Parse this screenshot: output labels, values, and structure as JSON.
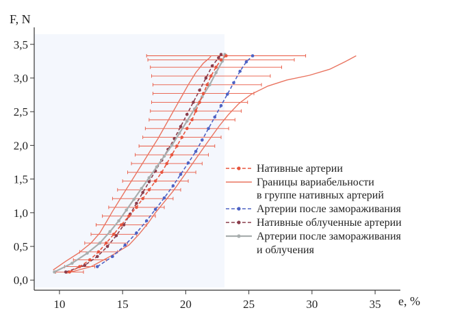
{
  "chart_data": {
    "type": "line",
    "title": "",
    "xlabel": "e, %",
    "ylabel": "F, N",
    "xlim": [
      8,
      37
    ],
    "ylim": [
      -0.15,
      3.65
    ],
    "x_ticks": [
      10,
      15,
      20,
      25,
      30,
      35
    ],
    "y_ticks": [
      0.0,
      0.5,
      1.0,
      1.5,
      2.0,
      2.5,
      3.0,
      3.5
    ],
    "x_tick_labels": [
      "10",
      "15",
      "20",
      "25",
      "30",
      "35"
    ],
    "y_tick_labels": [
      "0,0",
      "0,5",
      "1,0",
      "1,5",
      "2,0",
      "2,5",
      "3,0",
      "3,5"
    ],
    "grid": false,
    "legend_position": "right",
    "series": [
      {
        "name": "Нативные артерии",
        "color": "#e8553e",
        "style": "dashed-with-markers",
        "x": [
          10.8,
          11.6,
          12.4,
          13.1,
          13.7,
          14.3,
          14.9,
          15.5,
          16.1,
          16.6,
          17.1,
          17.6,
          18.1,
          18.5,
          18.9,
          19.3,
          19.7,
          20.1,
          20.5,
          20.8,
          21.1,
          21.4,
          21.7,
          22.0,
          22.4,
          22.8,
          23.2
        ],
        "y": [
          0.12,
          0.2,
          0.3,
          0.42,
          0.55,
          0.68,
          0.82,
          0.95,
          1.08,
          1.21,
          1.34,
          1.47,
          1.6,
          1.73,
          1.86,
          1.99,
          2.12,
          2.25,
          2.38,
          2.51,
          2.64,
          2.77,
          2.9,
          3.03,
          3.16,
          3.27,
          3.33
        ],
        "xerr": [
          1.1,
          1.2,
          1.3,
          1.5,
          1.7,
          1.8,
          2.0,
          2.1,
          2.2,
          2.4,
          2.5,
          2.6,
          2.7,
          2.8,
          2.9,
          3.0,
          3.1,
          3.3,
          3.4,
          3.6,
          3.8,
          4.0,
          4.3,
          4.7,
          5.2,
          5.8,
          6.3
        ]
      },
      {
        "name": "Границы вариабельности в группе нативных артерий",
        "color": "#e9735f",
        "style": "solid",
        "x": [
          9.5,
          10.5,
          11.5,
          12.5,
          13.2,
          13.7,
          14.2,
          14.8,
          15.4,
          16.0,
          16.6,
          17.2,
          17.8,
          18.4,
          19.0,
          19.6,
          20.2,
          20.8,
          21.4,
          21.9,
          22.0
        ],
        "y": [
          0.15,
          0.28,
          0.4,
          0.55,
          0.7,
          0.86,
          1.02,
          1.2,
          1.38,
          1.56,
          1.74,
          1.92,
          2.1,
          2.3,
          2.5,
          2.7,
          2.9,
          3.08,
          3.22,
          3.3,
          3.33
        ],
        "x_upper": [
          10.5,
          12.5,
          14.0,
          15.5,
          16.3,
          17.0,
          17.6,
          18.3,
          19.0,
          19.6,
          20.2,
          20.8,
          21.4,
          22.0,
          22.7,
          23.4,
          24.2,
          25.2,
          26.5,
          28.0,
          29.8,
          31.4,
          32.6,
          33.5
        ],
        "y_upper": [
          0.1,
          0.2,
          0.35,
          0.52,
          0.68,
          0.84,
          1.0,
          1.16,
          1.32,
          1.48,
          1.64,
          1.8,
          1.96,
          2.12,
          2.3,
          2.46,
          2.62,
          2.76,
          2.88,
          2.97,
          3.04,
          3.13,
          3.24,
          3.33
        ]
      },
      {
        "name": "Артерии после замораживания",
        "color": "#4d62c4",
        "style": "dashed-with-markers",
        "x": [
          13.0,
          14.2,
          15.2,
          16.1,
          16.9,
          17.6,
          18.3,
          19.0,
          19.6,
          20.2,
          20.8,
          21.3,
          21.8,
          22.3,
          22.8,
          23.3,
          23.8,
          24.3,
          24.8,
          25.3
        ],
        "y": [
          0.2,
          0.35,
          0.52,
          0.7,
          0.88,
          1.05,
          1.22,
          1.4,
          1.57,
          1.74,
          1.91,
          2.08,
          2.25,
          2.42,
          2.59,
          2.76,
          2.93,
          3.1,
          3.24,
          3.33
        ]
      },
      {
        "name": "Нативные облученные артерии",
        "color": "#8a3d4b",
        "style": "dashed-with-markers",
        "x": [
          10.5,
          12.0,
          13.0,
          13.8,
          14.5,
          15.1,
          15.6,
          16.1,
          16.6,
          17.1,
          17.6,
          18.1,
          18.6,
          19.1,
          19.6,
          20.1,
          20.6,
          21.1,
          21.6,
          22.1,
          22.6,
          22.8
        ],
        "y": [
          0.12,
          0.22,
          0.35,
          0.5,
          0.66,
          0.82,
          0.98,
          1.14,
          1.3,
          1.46,
          1.62,
          1.78,
          1.94,
          2.1,
          2.28,
          2.46,
          2.64,
          2.82,
          3.0,
          3.18,
          3.3,
          3.35
        ]
      },
      {
        "name": "Артерии после замораживания и облучения",
        "color": "#a8aeae",
        "style": "solid-with-markers",
        "x": [
          9.6,
          11.0,
          12.2,
          13.2,
          14.0,
          14.7,
          15.3,
          15.9,
          16.5,
          17.1,
          17.7,
          18.3,
          18.9,
          19.5,
          20.1,
          20.7,
          21.3,
          21.9,
          22.4,
          22.9,
          23.1
        ],
        "y": [
          0.12,
          0.25,
          0.4,
          0.55,
          0.72,
          0.88,
          1.04,
          1.2,
          1.36,
          1.52,
          1.68,
          1.84,
          2.0,
          2.18,
          2.36,
          2.54,
          2.72,
          2.9,
          3.08,
          3.25,
          3.35
        ]
      }
    ],
    "legend": [
      "Нативные артерии",
      "Границы вариабельности",
      "в группе нативных артерий",
      "Артерии после замораживания",
      "Нативные облученные артерии",
      "Артерии после замораживания",
      "и облучения"
    ]
  }
}
